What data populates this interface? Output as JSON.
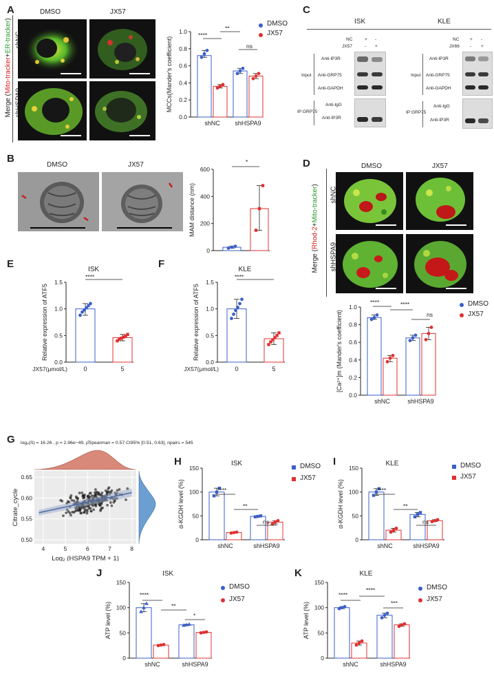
{
  "panels": {
    "A": {
      "label": "A",
      "cols": [
        "DMSO",
        "JX57"
      ],
      "rows": [
        "shNC",
        "shHSPA9"
      ],
      "merge_prefix": "Merge (",
      "merge_red": "Mito-tracker",
      "merge_plus": "+",
      "merge_green": "ER-tracker",
      "merge_suffix": ")"
    },
    "B": {
      "label": "B",
      "cols": [
        "DMSO",
        "JX57"
      ]
    },
    "C": {
      "label": "C",
      "cell_lines": [
        "ISK",
        "KLE"
      ],
      "isk_treat": [
        {
          "name": "NC",
          "vals": [
            "+",
            "-"
          ]
        },
        {
          "name": "JX57",
          "vals": [
            "-",
            "+"
          ]
        }
      ],
      "kle_treat": [
        {
          "name": "NC",
          "vals": [
            "+",
            "-"
          ]
        },
        {
          "name": "JX66",
          "vals": [
            "-",
            "+"
          ]
        }
      ],
      "input_label": "Input",
      "ip_label": "IP:GRP75",
      "input_rows": [
        "Anti-IP3R",
        "Anti-GRP75",
        "Anti-GAPDH"
      ],
      "ip_rows": [
        "Anti-IgG",
        "Anti-IP3R"
      ]
    },
    "D": {
      "label": "D",
      "cols": [
        "DMSO",
        "JX57"
      ],
      "rows": [
        "shNC",
        "shHSPA9"
      ],
      "merge_prefix": "Merge (",
      "merge_red": "Rhod-2",
      "merge_plus": "+",
      "merge_green": "Mito-tracker",
      "merge_suffix": ")"
    },
    "E": {
      "label": "E"
    },
    "F": {
      "label": "F"
    },
    "G": {
      "label": "G"
    },
    "H": {
      "label": "H"
    },
    "I": {
      "label": "I"
    },
    "J": {
      "label": "J"
    },
    "K": {
      "label": "K"
    }
  },
  "legend": {
    "dmso": "DMSO",
    "jx57": "JX57"
  },
  "colors": {
    "dmso": "#3a5fc9",
    "jx57": "#e03030",
    "green_stain": "#8bd23a",
    "red_stain": "#d62020"
  },
  "stats": {
    "A_top": "****",
    "A_span": "**",
    "A_right": "ns",
    "B": "*",
    "D_left": "****",
    "D_span": "****",
    "D_right": "ns",
    "E": "****",
    "F": "****",
    "H_left": "****",
    "H_span": "**",
    "H_right": "ns",
    "I_left": "****",
    "I_span": "**",
    "I_right": "ns",
    "J_left": "****",
    "J_span": "**",
    "J_right": "*",
    "K_left": "****",
    "K_span": "****",
    "K_right": "***"
  },
  "G_stats": "logₑ(S) = 16.26 , p = 2.96e−49, ρ̂Spearman = 0.57  CI95% [0.51, 0.63], npairs = 545",
  "chart_data": [
    {
      "id": "A",
      "type": "bar",
      "categories": [
        "shNC",
        "shHSPA9"
      ],
      "series": [
        {
          "name": "DMSO",
          "values": [
            0.72,
            0.54
          ]
        },
        {
          "name": "JX57",
          "values": [
            0.36,
            0.48
          ]
        }
      ],
      "points": {
        "DMSO": [
          [
            0.7,
            0.74,
            0.78
          ],
          [
            0.51,
            0.54,
            0.57
          ]
        ],
        "JX57": [
          [
            0.34,
            0.36,
            0.38
          ],
          [
            0.45,
            0.48,
            0.51
          ]
        ]
      },
      "ylabel": "MCCs(Mander's coefficient)",
      "ylim": [
        0,
        1.0
      ],
      "yticks": [
        0.0,
        0.2,
        0.4,
        0.6,
        0.8,
        1.0
      ]
    },
    {
      "id": "B",
      "type": "bar",
      "categories": [
        "DMSO",
        "JX57"
      ],
      "values": [
        25,
        310
      ],
      "points": [
        [
          18,
          25,
          32
        ],
        [
          150,
          310,
          480
        ]
      ],
      "ylabel": "MAM distance  (nm)",
      "ylim": [
        0,
        600
      ],
      "yticks": [
        0,
        200,
        400,
        600
      ]
    },
    {
      "id": "E",
      "type": "bar",
      "title": "ISK",
      "categories": [
        "0",
        "5"
      ],
      "values": [
        1.0,
        0.46
      ],
      "xlabel_prefix": "JX57(μmol/L)",
      "points": [
        [
          0.88,
          0.94,
          0.98,
          1.02,
          1.06,
          1.1
        ],
        [
          0.4,
          0.43,
          0.45,
          0.47,
          0.49,
          0.52
        ]
      ],
      "ylabel": "Relative expression of ATF5",
      "ylim": [
        0,
        1.5
      ],
      "yticks": [
        0.0,
        0.5,
        1.0,
        1.5
      ]
    },
    {
      "id": "F",
      "type": "bar",
      "title": "KLE",
      "categories": [
        "0",
        "5"
      ],
      "values": [
        1.0,
        0.44
      ],
      "xlabel_prefix": "JX57(μmol/L)",
      "points": [
        [
          0.82,
          0.9,
          0.97,
          1.03,
          1.1,
          1.18
        ],
        [
          0.33,
          0.38,
          0.42,
          0.46,
          0.5,
          0.55
        ]
      ],
      "ylabel": "Relative expression of ATF5",
      "ylim": [
        0,
        1.5
      ],
      "yticks": [
        0.0,
        0.5,
        1.0,
        1.5
      ]
    },
    {
      "id": "D",
      "type": "bar",
      "categories": [
        "shNC",
        "shHSPA9"
      ],
      "series": [
        {
          "name": "DMSO",
          "values": [
            0.88,
            0.65
          ]
        },
        {
          "name": "JX57",
          "values": [
            0.42,
            0.7
          ]
        }
      ],
      "points": {
        "DMSO": [
          [
            0.86,
            0.88,
            0.91
          ],
          [
            0.62,
            0.65,
            0.68
          ]
        ],
        "JX57": [
          [
            0.38,
            0.42,
            0.45
          ],
          [
            0.63,
            0.7,
            0.77
          ]
        ]
      },
      "ylabel": "[Ca²⁺]m (Mander's coefficient)",
      "ylim": [
        0,
        1.0
      ],
      "yticks": [
        0.0,
        0.2,
        0.4,
        0.6,
        0.8,
        1.0
      ]
    },
    {
      "id": "G",
      "type": "scatter",
      "xlabel": "Log₂ (HSPA9 TPM + 1)",
      "ylabel": "Citrate_cycle",
      "xlim": [
        3.6,
        8.2
      ],
      "ylim": [
        0.49,
        0.665
      ],
      "xticks": [
        4,
        5,
        6,
        7,
        8
      ],
      "yticks": [
        0.5,
        0.55,
        0.6,
        0.65
      ],
      "fit": {
        "intercept": 0.527,
        "slope": 0.0115
      }
    },
    {
      "id": "H",
      "type": "bar",
      "title": "ISK",
      "categories": [
        "shNC",
        "shHSPA9"
      ],
      "series": [
        {
          "name": "DMSO",
          "values": [
            100,
            49
          ]
        },
        {
          "name": "JX57",
          "values": [
            15,
            37
          ]
        }
      ],
      "points": {
        "DMSO": [
          [
            92,
            100,
            108
          ],
          [
            48,
            49,
            50
          ]
        ],
        "JX57": [
          [
            14,
            15,
            16
          ],
          [
            33,
            37,
            40
          ]
        ]
      },
      "ylabel": "α-KGDH level (%)",
      "ylim": [
        0,
        150
      ],
      "yticks": [
        0,
        50,
        100,
        150
      ]
    },
    {
      "id": "I",
      "type": "bar",
      "title": "KLE",
      "categories": [
        "shNC",
        "shHSPA9"
      ],
      "series": [
        {
          "name": "DMSO",
          "values": [
            100,
            53
          ]
        },
        {
          "name": "JX57",
          "values": [
            20,
            40
          ]
        }
      ],
      "points": {
        "DMSO": [
          [
            93,
            100,
            107
          ],
          [
            48,
            53,
            57
          ]
        ],
        "JX57": [
          [
            16,
            20,
            24
          ],
          [
            38,
            40,
            42
          ]
        ]
      },
      "ylabel": "α-KGDH level (%)",
      "ylim": [
        0,
        150
      ],
      "yticks": [
        0,
        50,
        100,
        150
      ]
    },
    {
      "id": "J",
      "type": "bar",
      "title": "ISK",
      "categories": [
        "shNC",
        "shHSPA9"
      ],
      "series": [
        {
          "name": "DMSO",
          "values": [
            100,
            66
          ]
        },
        {
          "name": "JX57",
          "values": [
            26,
            51
          ]
        }
      ],
      "points": {
        "DMSO": [
          [
            92,
            100,
            108
          ],
          [
            65,
            66,
            67
          ]
        ],
        "JX57": [
          [
            25,
            26,
            27
          ],
          [
            50,
            51,
            52
          ]
        ]
      },
      "ylabel": "ATP level (%)",
      "ylim": [
        0,
        150
      ],
      "yticks": [
        0,
        50,
        100,
        150
      ]
    },
    {
      "id": "K",
      "type": "bar",
      "title": "KLE",
      "categories": [
        "shNC",
        "shHSPA9"
      ],
      "series": [
        {
          "name": "DMSO",
          "values": [
            100,
            85
          ]
        },
        {
          "name": "JX57",
          "values": [
            30,
            66
          ]
        }
      ],
      "points": {
        "DMSO": [
          [
            98,
            100,
            102
          ],
          [
            80,
            85,
            89
          ]
        ],
        "JX57": [
          [
            26,
            30,
            34
          ],
          [
            63,
            66,
            68
          ]
        ]
      },
      "ylabel": "ATP level (%)",
      "ylim": [
        0,
        150
      ],
      "yticks": [
        0,
        50,
        100,
        150
      ]
    }
  ]
}
